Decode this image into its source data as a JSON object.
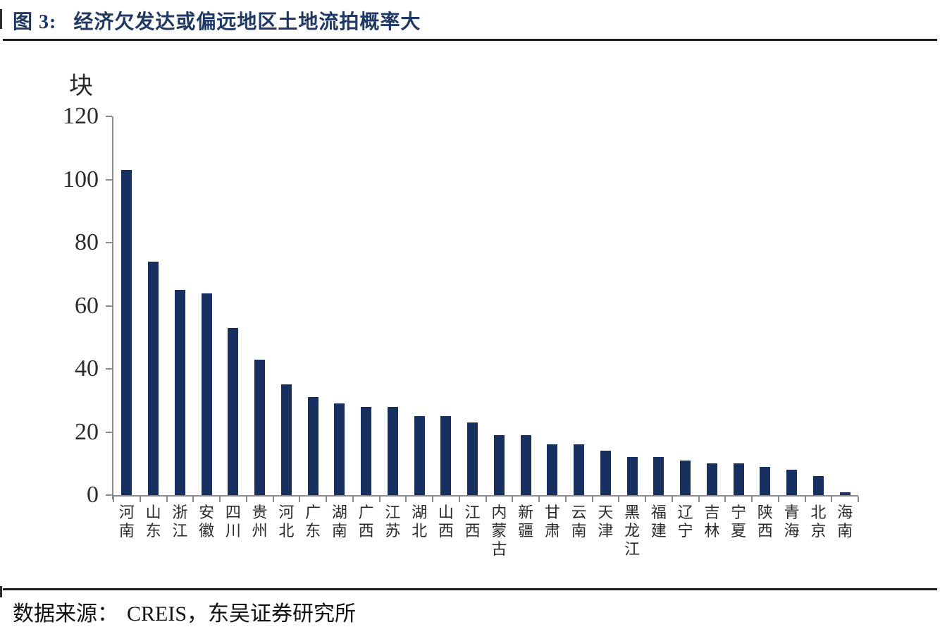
{
  "header": {
    "figure_label": "图 3:",
    "title": "经济欠发达或偏远地区土地流拍概率大"
  },
  "footer": {
    "source_label": "数据来源：",
    "source_text": "CREIS，东吴证券研究所"
  },
  "chart_data": {
    "type": "bar",
    "title": "经济欠发达或偏远地区土地流拍概率大",
    "unit_label": "块",
    "ylabel": "块",
    "xlabel": "",
    "categories": [
      "河南",
      "山东",
      "浙江",
      "安徽",
      "四川",
      "贵州",
      "河北",
      "广东",
      "湖南",
      "广西",
      "江苏",
      "湖北",
      "山西",
      "江西",
      "内蒙古",
      "新疆",
      "甘肃",
      "云南",
      "天津",
      "黑龙江",
      "福建",
      "辽宁",
      "吉林",
      "宁夏",
      "陕西",
      "青海",
      "北京",
      "海南"
    ],
    "values": [
      103,
      74,
      65,
      64,
      53,
      43,
      35,
      31,
      29,
      28,
      28,
      25,
      25,
      23,
      19,
      19,
      16,
      16,
      14,
      12,
      12,
      11,
      10,
      10,
      9,
      8,
      6,
      1
    ],
    "ylim": [
      0,
      120
    ],
    "yticks": [
      0,
      20,
      40,
      60,
      80,
      100,
      120
    ],
    "grid": false,
    "legend": false
  },
  "colors": {
    "title": "#1F3864",
    "bar": "#17305F",
    "axis": "#8A8A8A",
    "text": "#2B2B2B",
    "rule": "#1C1C1C",
    "footer_text": "#111111"
  }
}
